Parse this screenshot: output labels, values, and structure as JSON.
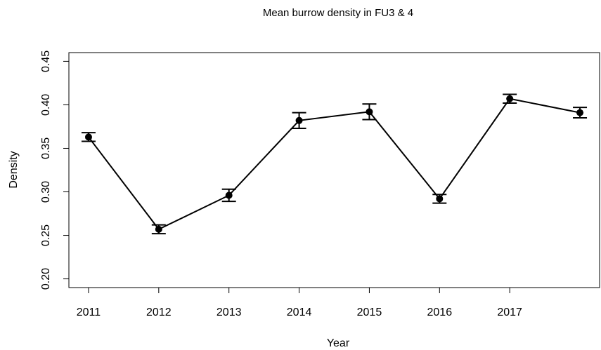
{
  "chart_data": {
    "type": "line",
    "title": "Mean burrow density in FU3 & 4",
    "x_label": "Year",
    "y_label": "Density",
    "categories": [
      "2011",
      "2012",
      "2013",
      "2014",
      "2015",
      "2016",
      "2017",
      null
    ],
    "values": [
      0.363,
      0.257,
      0.296,
      0.382,
      0.392,
      0.292,
      0.407,
      0.391
    ],
    "errors": [
      0.005,
      0.005,
      0.007,
      0.009,
      0.009,
      0.005,
      0.005,
      0.006
    ],
    "color": "#000000",
    "ylim": [
      0.19,
      0.46
    ],
    "yticks": [
      {
        "value": 0.2,
        "label": "0.20"
      },
      0.25,
      {
        "value": 0.3,
        "label": "0.30"
      },
      0.35,
      {
        "value": 0.4,
        "label": "0.40"
      },
      0.45
    ]
  }
}
